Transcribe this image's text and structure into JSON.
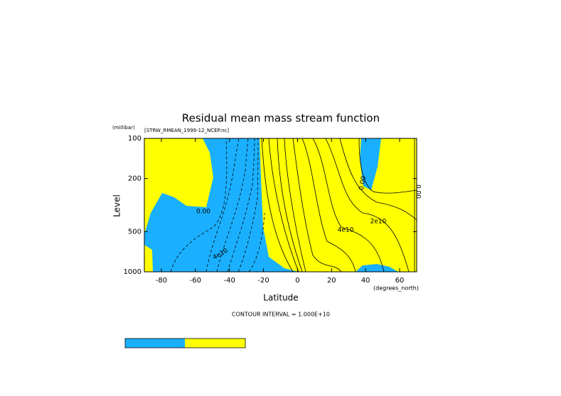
{
  "chart_data": {
    "type": "contour",
    "title": "Residual mean mass stream function",
    "subtitle": "[STRW_RMEAN_1999-12_NCEP.nc]",
    "y_unit_label": "(millibar)",
    "ylabel": "Level",
    "xlabel": "Latitude",
    "x_unit_label": "(degrees_north)",
    "footnote": "CONTOUR INTERVAL = 1.000E+10",
    "xlim": [
      -90,
      70
    ],
    "xticks": [
      -80,
      -60,
      -40,
      -20,
      0,
      20,
      40,
      60
    ],
    "ylim": [
      1000,
      100
    ],
    "yticks": [
      1000,
      500,
      200,
      100
    ],
    "ylog": true,
    "colors": [
      "#1ab0ff",
      "#ffff00"
    ],
    "contour_labels": [
      "0.00",
      "0.00",
      "0.00",
      "2e10",
      "4e10",
      "4e10"
    ]
  }
}
